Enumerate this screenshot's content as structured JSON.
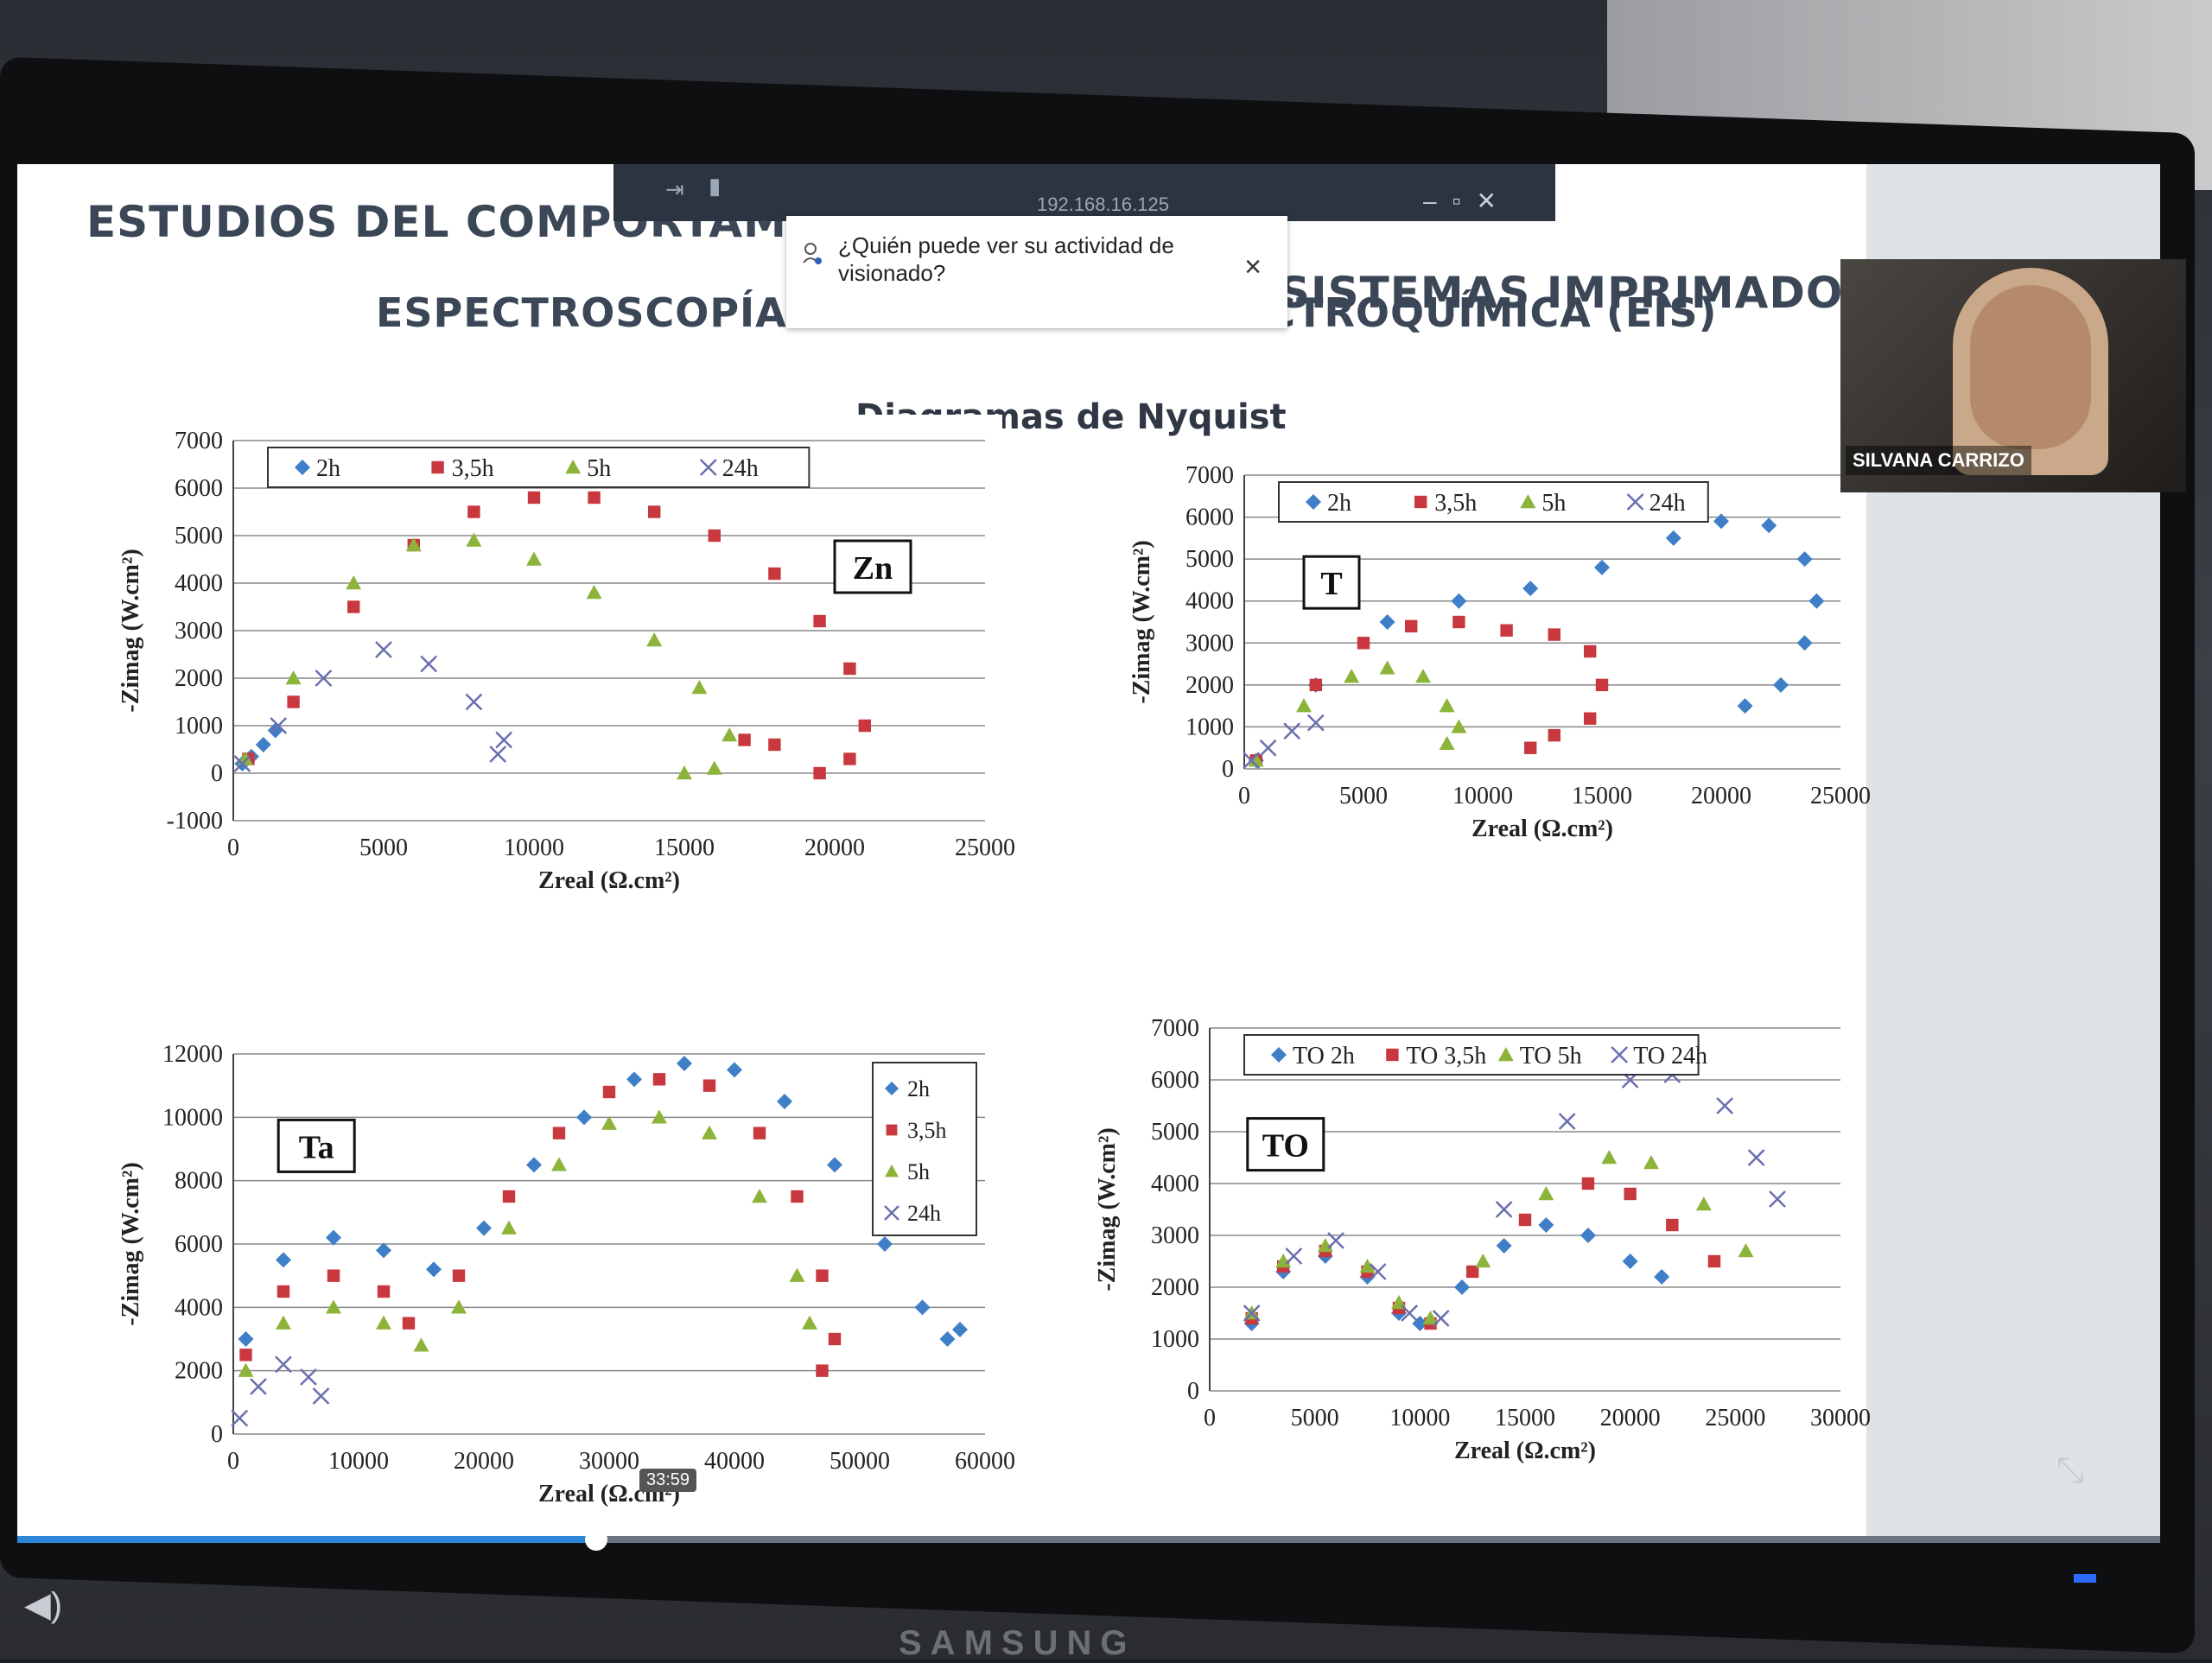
{
  "slide": {
    "title_left": "ESTUDIOS DEL COMPORTAMI",
    "title_right": "SISTEMAS IMPRIMADOS CON",
    "title_line2": "ESPECTROSCOPÍA DE IMPEDANCIA  ELECTROQUÍMICA (EIS)",
    "subtitle": "Diagramas de Nyquist"
  },
  "popup": {
    "text": "¿Quién puede ver su actividad de visionado?",
    "close": "×"
  },
  "viewer": {
    "ip": "192.168.16.125",
    "clock": "33:59",
    "webcam_name": "SILVANA CARRIZO",
    "progress": 0.27,
    "brand": "SAMSUNG"
  },
  "colors": {
    "2h": "#3f7fc8",
    "3.5h": "#c8383e",
    "5h": "#8db43a",
    "24h": "#6a6fb0"
  },
  "chart_data": [
    {
      "type": "scatter",
      "label": "Zn",
      "xlabel": "Zreal (Ω.cm²)",
      "ylabel": "-Zimag (W.cm²)",
      "xlim": [
        0,
        25000
      ],
      "ylim": [
        -1000,
        7000
      ],
      "xticks": [
        "0",
        "5000",
        "10000",
        "15000",
        "20000",
        "25000"
      ],
      "yticks": [
        "-1000",
        "0",
        "1000",
        "2000",
        "3000",
        "4000",
        "5000",
        "6000",
        "7000"
      ],
      "legend": [
        "2h",
        "3,5h",
        "5h",
        "24h"
      ],
      "series": [
        {
          "name": "2h",
          "marker": "diamond",
          "points": [
            [
              300,
              200
            ],
            [
              600,
              350
            ],
            [
              1000,
              600
            ],
            [
              1400,
              900
            ]
          ]
        },
        {
          "name": "3,5h",
          "marker": "square",
          "points": [
            [
              500,
              300
            ],
            [
              2000,
              1500
            ],
            [
              4000,
              3500
            ],
            [
              6000,
              4800
            ],
            [
              8000,
              5500
            ],
            [
              10000,
              5800
            ],
            [
              12000,
              5800
            ],
            [
              14000,
              5500
            ],
            [
              16000,
              5000
            ],
            [
              18000,
              4200
            ],
            [
              19500,
              3200
            ],
            [
              20500,
              2200
            ],
            [
              21000,
              1000
            ],
            [
              20500,
              300
            ],
            [
              19500,
              0
            ],
            [
              18000,
              600
            ],
            [
              17000,
              700
            ]
          ]
        },
        {
          "name": "5h",
          "marker": "triangle",
          "points": [
            [
              400,
              300
            ],
            [
              2000,
              2000
            ],
            [
              4000,
              4000
            ],
            [
              6000,
              4800
            ],
            [
              8000,
              4900
            ],
            [
              10000,
              4500
            ],
            [
              12000,
              3800
            ],
            [
              14000,
              2800
            ],
            [
              15500,
              1800
            ],
            [
              16500,
              800
            ],
            [
              16000,
              100
            ],
            [
              15000,
              0
            ]
          ]
        },
        {
          "name": "24h",
          "marker": "x",
          "points": [
            [
              300,
              200
            ],
            [
              1500,
              1000
            ],
            [
              3000,
              2000
            ],
            [
              5000,
              2600
            ],
            [
              6500,
              2300
            ],
            [
              8000,
              1500
            ],
            [
              9000,
              700
            ],
            [
              8800,
              400
            ]
          ]
        }
      ]
    },
    {
      "type": "scatter",
      "label": "T",
      "xlabel": "Zreal (Ω.cm²)",
      "ylabel": "-Zimag (W.cm²)",
      "xlim": [
        0,
        25000
      ],
      "ylim": [
        0,
        7000
      ],
      "xticks": [
        "0",
        "5000",
        "10000",
        "15000",
        "20000",
        "25000"
      ],
      "yticks": [
        "0",
        "1000",
        "2000",
        "3000",
        "4000",
        "5000",
        "6000",
        "7000"
      ],
      "legend": [
        "2h",
        "3,5h",
        "5h",
        "24h"
      ],
      "series": [
        {
          "name": "2h",
          "marker": "diamond",
          "points": [
            [
              500,
              200
            ],
            [
              3000,
              2000
            ],
            [
              6000,
              3500
            ],
            [
              9000,
              4000
            ],
            [
              12000,
              4300
            ],
            [
              15000,
              4800
            ],
            [
              18000,
              5500
            ],
            [
              20000,
              5900
            ],
            [
              22000,
              5800
            ],
            [
              23500,
              5000
            ],
            [
              24000,
              4000
            ],
            [
              23500,
              3000
            ],
            [
              22500,
              2000
            ],
            [
              21000,
              1500
            ]
          ]
        },
        {
          "name": "3,5h",
          "marker": "square",
          "points": [
            [
              500,
              200
            ],
            [
              3000,
              2000
            ],
            [
              5000,
              3000
            ],
            [
              7000,
              3400
            ],
            [
              9000,
              3500
            ],
            [
              11000,
              3300
            ],
            [
              13000,
              3200
            ],
            [
              14500,
              2800
            ],
            [
              15000,
              2000
            ],
            [
              14500,
              1200
            ],
            [
              13000,
              800
            ],
            [
              12000,
              500
            ]
          ]
        },
        {
          "name": "5h",
          "marker": "triangle",
          "points": [
            [
              500,
              200
            ],
            [
              2500,
              1500
            ],
            [
              4500,
              2200
            ],
            [
              6000,
              2400
            ],
            [
              7500,
              2200
            ],
            [
              8500,
              1500
            ],
            [
              9000,
              1000
            ],
            [
              8500,
              600
            ]
          ]
        },
        {
          "name": "24h",
          "marker": "x",
          "points": [
            [
              300,
              200
            ],
            [
              1000,
              500
            ],
            [
              2000,
              900
            ],
            [
              3000,
              1100
            ]
          ]
        }
      ]
    },
    {
      "type": "scatter",
      "label": "Ta",
      "xlabel": "Zreal (Ω.cm²)",
      "ylabel": "-Zimag (W.cm²)",
      "xlim": [
        0,
        60000
      ],
      "ylim": [
        0,
        12000
      ],
      "xticks": [
        "0",
        "10000",
        "20000",
        "30000",
        "40000",
        "50000",
        "60000"
      ],
      "yticks": [
        "0",
        "2000",
        "4000",
        "6000",
        "8000",
        "10000",
        "12000"
      ],
      "legend": [
        "2h",
        "3,5h",
        "5h",
        "24h"
      ],
      "series": [
        {
          "name": "2h",
          "marker": "diamond",
          "points": [
            [
              1000,
              3000
            ],
            [
              4000,
              5500
            ],
            [
              8000,
              6200
            ],
            [
              12000,
              5800
            ],
            [
              16000,
              5200
            ],
            [
              20000,
              6500
            ],
            [
              24000,
              8500
            ],
            [
              28000,
              10000
            ],
            [
              32000,
              11200
            ],
            [
              36000,
              11700
            ],
            [
              40000,
              11500
            ],
            [
              44000,
              10500
            ],
            [
              48000,
              8500
            ],
            [
              52000,
              6000
            ],
            [
              55000,
              4000
            ],
            [
              57000,
              3000
            ],
            [
              58000,
              3300
            ]
          ]
        },
        {
          "name": "3,5h",
          "marker": "square",
          "points": [
            [
              1000,
              2500
            ],
            [
              4000,
              4500
            ],
            [
              8000,
              5000
            ],
            [
              12000,
              4500
            ],
            [
              14000,
              3500
            ],
            [
              18000,
              5000
            ],
            [
              22000,
              7500
            ],
            [
              26000,
              9500
            ],
            [
              30000,
              10800
            ],
            [
              34000,
              11200
            ],
            [
              38000,
              11000
            ],
            [
              42000,
              9500
            ],
            [
              45000,
              7500
            ],
            [
              47000,
              5000
            ],
            [
              48000,
              3000
            ],
            [
              47000,
              2000
            ]
          ]
        },
        {
          "name": "5h",
          "marker": "triangle",
          "points": [
            [
              1000,
              2000
            ],
            [
              4000,
              3500
            ],
            [
              8000,
              4000
            ],
            [
              12000,
              3500
            ],
            [
              15000,
              2800
            ],
            [
              18000,
              4000
            ],
            [
              22000,
              6500
            ],
            [
              26000,
              8500
            ],
            [
              30000,
              9800
            ],
            [
              34000,
              10000
            ],
            [
              38000,
              9500
            ],
            [
              42000,
              7500
            ],
            [
              45000,
              5000
            ],
            [
              46000,
              3500
            ]
          ]
        },
        {
          "name": "24h",
          "marker": "x",
          "points": [
            [
              500,
              500
            ],
            [
              2000,
              1500
            ],
            [
              4000,
              2200
            ],
            [
              6000,
              1800
            ],
            [
              7000,
              1200
            ]
          ]
        }
      ]
    },
    {
      "type": "scatter",
      "label": "TO",
      "xlabel": "Zreal (Ω.cm²)",
      "ylabel": "-Zimag (W.cm²)",
      "xlim": [
        0,
        30000
      ],
      "ylim": [
        0,
        7000
      ],
      "xticks": [
        "0",
        "5000",
        "10000",
        "15000",
        "20000",
        "25000",
        "30000"
      ],
      "yticks": [
        "0",
        "1000",
        "2000",
        "3000",
        "4000",
        "5000",
        "6000",
        "7000"
      ],
      "legend": [
        "TO 2h",
        "TO 3,5h",
        "TO 5h",
        "TO 24h"
      ],
      "series": [
        {
          "name": "TO 2h",
          "marker": "diamond",
          "points": [
            [
              2000,
              1300
            ],
            [
              3500,
              2300
            ],
            [
              5500,
              2600
            ],
            [
              7500,
              2200
            ],
            [
              9000,
              1500
            ],
            [
              10000,
              1300
            ],
            [
              12000,
              2000
            ],
            [
              14000,
              2800
            ],
            [
              16000,
              3200
            ],
            [
              18000,
              3000
            ],
            [
              20000,
              2500
            ],
            [
              21500,
              2200
            ]
          ]
        },
        {
          "name": "TO 3,5h",
          "marker": "square",
          "points": [
            [
              2000,
              1400
            ],
            [
              3500,
              2400
            ],
            [
              5500,
              2700
            ],
            [
              7500,
              2300
            ],
            [
              9000,
              1600
            ],
            [
              10500,
              1300
            ],
            [
              12500,
              2300
            ],
            [
              15000,
              3300
            ],
            [
              18000,
              4000
            ],
            [
              20000,
              3800
            ],
            [
              22000,
              3200
            ],
            [
              24000,
              2500
            ]
          ]
        },
        {
          "name": "TO 5h",
          "marker": "triangle",
          "points": [
            [
              2000,
              1500
            ],
            [
              3500,
              2500
            ],
            [
              5500,
              2800
            ],
            [
              7500,
              2400
            ],
            [
              9000,
              1700
            ],
            [
              10500,
              1400
            ],
            [
              13000,
              2500
            ],
            [
              16000,
              3800
            ],
            [
              19000,
              4500
            ],
            [
              21000,
              4400
            ],
            [
              23500,
              3600
            ],
            [
              25500,
              2700
            ]
          ]
        },
        {
          "name": "TO 24h",
          "marker": "x",
          "points": [
            [
              2000,
              1500
            ],
            [
              4000,
              2600
            ],
            [
              6000,
              2900
            ],
            [
              8000,
              2300
            ],
            [
              9500,
              1500
            ],
            [
              11000,
              1400
            ],
            [
              14000,
              3500
            ],
            [
              17000,
              5200
            ],
            [
              20000,
              6000
            ],
            [
              22000,
              6100
            ],
            [
              24500,
              5500
            ],
            [
              26000,
              4500
            ],
            [
              27000,
              3700
            ]
          ]
        }
      ]
    }
  ]
}
